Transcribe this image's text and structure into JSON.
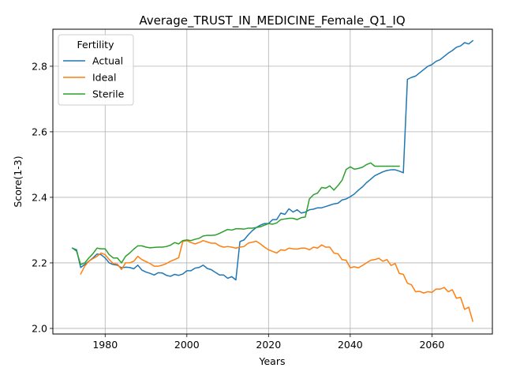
{
  "chart_data": {
    "type": "line",
    "title": "Average_TRUST_IN_MEDICINE_Female_Q1_IQ",
    "xlabel": "Years",
    "ylabel": "Score(1-3)",
    "xlim": [
      1967.2,
      2074.8
    ],
    "ylim": [
      1.983,
      2.913
    ],
    "x_ticks": [
      1980,
      2000,
      2020,
      2040,
      2060
    ],
    "y_ticks": [
      2.0,
      2.2,
      2.4,
      2.6,
      2.8
    ],
    "x_tick_labels": [
      "1980",
      "2000",
      "2020",
      "2040",
      "2060"
    ],
    "y_tick_labels": [
      "2.0",
      "2.2",
      "2.4",
      "2.6",
      "2.8"
    ],
    "grid": true,
    "legend": {
      "title": "Fertility",
      "placement": "top-left"
    },
    "series": [
      {
        "name": "Actual",
        "color": "#1f77b4",
        "points": [
          [
            1972,
            2.245
          ],
          [
            1973,
            2.24
          ],
          [
            1974,
            2.186
          ],
          [
            1975,
            2.195
          ],
          [
            1976,
            2.205
          ],
          [
            1977,
            2.215
          ],
          [
            1978,
            2.227
          ],
          [
            1979,
            2.225
          ],
          [
            1980,
            2.215
          ],
          [
            1981,
            2.2
          ],
          [
            1982,
            2.195
          ],
          [
            1983,
            2.193
          ],
          [
            1984,
            2.185
          ],
          [
            1985,
            2.187
          ],
          [
            1986,
            2.186
          ],
          [
            1987,
            2.182
          ],
          [
            1988,
            2.193
          ],
          [
            1989,
            2.178
          ],
          [
            1990,
            2.172
          ],
          [
            1991,
            2.168
          ],
          [
            1992,
            2.163
          ],
          [
            1993,
            2.17
          ],
          [
            1994,
            2.169
          ],
          [
            1995,
            2.162
          ],
          [
            1996,
            2.159
          ],
          [
            1997,
            2.165
          ],
          [
            1998,
            2.162
          ],
          [
            1999,
            2.166
          ],
          [
            2000,
            2.176
          ],
          [
            2001,
            2.176
          ],
          [
            2002,
            2.184
          ],
          [
            2003,
            2.186
          ],
          [
            2004,
            2.193
          ],
          [
            2005,
            2.183
          ],
          [
            2006,
            2.179
          ],
          [
            2007,
            2.171
          ],
          [
            2008,
            2.163
          ],
          [
            2009,
            2.163
          ],
          [
            2010,
            2.153
          ],
          [
            2011,
            2.158
          ],
          [
            2012,
            2.148
          ],
          [
            2013,
            2.265
          ],
          [
            2014,
            2.27
          ],
          [
            2015,
            2.285
          ],
          [
            2016,
            2.298
          ],
          [
            2017,
            2.308
          ],
          [
            2018,
            2.315
          ],
          [
            2019,
            2.32
          ],
          [
            2020,
            2.32
          ],
          [
            2021,
            2.332
          ],
          [
            2022,
            2.332
          ],
          [
            2023,
            2.352
          ],
          [
            2024,
            2.348
          ],
          [
            2025,
            2.365
          ],
          [
            2026,
            2.355
          ],
          [
            2027,
            2.362
          ],
          [
            2028,
            2.352
          ],
          [
            2029,
            2.355
          ],
          [
            2030,
            2.362
          ],
          [
            2031,
            2.364
          ],
          [
            2032,
            2.368
          ],
          [
            2033,
            2.368
          ],
          [
            2034,
            2.372
          ],
          [
            2035,
            2.376
          ],
          [
            2036,
            2.38
          ],
          [
            2037,
            2.382
          ],
          [
            2038,
            2.392
          ],
          [
            2039,
            2.395
          ],
          [
            2040,
            2.402
          ],
          [
            2041,
            2.41
          ],
          [
            2042,
            2.422
          ],
          [
            2043,
            2.432
          ],
          [
            2044,
            2.445
          ],
          [
            2045,
            2.455
          ],
          [
            2046,
            2.466
          ],
          [
            2047,
            2.472
          ],
          [
            2048,
            2.478
          ],
          [
            2049,
            2.482
          ],
          [
            2050,
            2.484
          ],
          [
            2051,
            2.484
          ],
          [
            2052,
            2.48
          ],
          [
            2053,
            2.475
          ],
          [
            2054,
            2.76
          ],
          [
            2055,
            2.766
          ],
          [
            2056,
            2.77
          ],
          [
            2057,
            2.78
          ],
          [
            2058,
            2.79
          ],
          [
            2059,
            2.8
          ],
          [
            2060,
            2.805
          ],
          [
            2061,
            2.815
          ],
          [
            2062,
            2.82
          ],
          [
            2063,
            2.83
          ],
          [
            2064,
            2.84
          ],
          [
            2065,
            2.848
          ],
          [
            2066,
            2.858
          ],
          [
            2067,
            2.862
          ],
          [
            2068,
            2.872
          ],
          [
            2069,
            2.868
          ],
          [
            2070,
            2.878
          ]
        ]
      },
      {
        "name": "Ideal",
        "color": "#ff7f0e",
        "points": [
          [
            1974,
            2.166
          ],
          [
            1975,
            2.19
          ],
          [
            1976,
            2.205
          ],
          [
            1977,
            2.213
          ],
          [
            1978,
            2.22
          ],
          [
            1979,
            2.23
          ],
          [
            1980,
            2.225
          ],
          [
            1981,
            2.21
          ],
          [
            1982,
            2.198
          ],
          [
            1983,
            2.196
          ],
          [
            1984,
            2.18
          ],
          [
            1985,
            2.2
          ],
          [
            1986,
            2.2
          ],
          [
            1987,
            2.205
          ],
          [
            1988,
            2.22
          ],
          [
            1989,
            2.21
          ],
          [
            1990,
            2.204
          ],
          [
            1991,
            2.198
          ],
          [
            1992,
            2.19
          ],
          [
            1993,
            2.19
          ],
          [
            1994,
            2.193
          ],
          [
            1995,
            2.198
          ],
          [
            1996,
            2.205
          ],
          [
            1997,
            2.21
          ],
          [
            1998,
            2.216
          ],
          [
            1999,
            2.265
          ],
          [
            2000,
            2.268
          ],
          [
            2001,
            2.262
          ],
          [
            2002,
            2.258
          ],
          [
            2003,
            2.262
          ],
          [
            2004,
            2.268
          ],
          [
            2005,
            2.264
          ],
          [
            2006,
            2.26
          ],
          [
            2007,
            2.26
          ],
          [
            2008,
            2.252
          ],
          [
            2009,
            2.248
          ],
          [
            2010,
            2.25
          ],
          [
            2011,
            2.248
          ],
          [
            2012,
            2.245
          ],
          [
            2013,
            2.248
          ],
          [
            2014,
            2.25
          ],
          [
            2015,
            2.26
          ],
          [
            2016,
            2.263
          ],
          [
            2017,
            2.266
          ],
          [
            2018,
            2.258
          ],
          [
            2019,
            2.248
          ],
          [
            2020,
            2.24
          ],
          [
            2021,
            2.235
          ],
          [
            2022,
            2.23
          ],
          [
            2023,
            2.24
          ],
          [
            2024,
            2.238
          ],
          [
            2025,
            2.245
          ],
          [
            2026,
            2.243
          ],
          [
            2027,
            2.242
          ],
          [
            2028,
            2.245
          ],
          [
            2029,
            2.245
          ],
          [
            2030,
            2.24
          ],
          [
            2031,
            2.248
          ],
          [
            2032,
            2.245
          ],
          [
            2033,
            2.255
          ],
          [
            2034,
            2.248
          ],
          [
            2035,
            2.248
          ],
          [
            2036,
            2.23
          ],
          [
            2037,
            2.228
          ],
          [
            2038,
            2.21
          ],
          [
            2039,
            2.208
          ],
          [
            2040,
            2.185
          ],
          [
            2041,
            2.188
          ],
          [
            2042,
            2.185
          ],
          [
            2043,
            2.192
          ],
          [
            2044,
            2.2
          ],
          [
            2045,
            2.208
          ],
          [
            2046,
            2.21
          ],
          [
            2047,
            2.214
          ],
          [
            2048,
            2.205
          ],
          [
            2049,
            2.21
          ],
          [
            2050,
            2.192
          ],
          [
            2051,
            2.198
          ],
          [
            2052,
            2.168
          ],
          [
            2053,
            2.165
          ],
          [
            2054,
            2.138
          ],
          [
            2055,
            2.133
          ],
          [
            2056,
            2.112
          ],
          [
            2057,
            2.113
          ],
          [
            2058,
            2.108
          ],
          [
            2059,
            2.112
          ],
          [
            2060,
            2.11
          ],
          [
            2061,
            2.12
          ],
          [
            2062,
            2.12
          ],
          [
            2063,
            2.125
          ],
          [
            2064,
            2.112
          ],
          [
            2065,
            2.118
          ],
          [
            2066,
            2.092
          ],
          [
            2067,
            2.095
          ],
          [
            2068,
            2.058
          ],
          [
            2069,
            2.065
          ],
          [
            2070,
            2.022
          ]
        ]
      },
      {
        "name": "Sterile",
        "color": "#2ca02c",
        "points": [
          [
            1972,
            2.245
          ],
          [
            1973,
            2.236
          ],
          [
            1974,
            2.195
          ],
          [
            1975,
            2.2
          ],
          [
            1976,
            2.215
          ],
          [
            1977,
            2.228
          ],
          [
            1978,
            2.245
          ],
          [
            1979,
            2.243
          ],
          [
            1980,
            2.243
          ],
          [
            1981,
            2.225
          ],
          [
            1982,
            2.215
          ],
          [
            1983,
            2.215
          ],
          [
            1984,
            2.2
          ],
          [
            1985,
            2.22
          ],
          [
            1986,
            2.23
          ],
          [
            1987,
            2.242
          ],
          [
            1988,
            2.252
          ],
          [
            1989,
            2.252
          ],
          [
            1990,
            2.248
          ],
          [
            1991,
            2.246
          ],
          [
            1992,
            2.247
          ],
          [
            1993,
            2.248
          ],
          [
            1994,
            2.248
          ],
          [
            1995,
            2.25
          ],
          [
            1996,
            2.254
          ],
          [
            1997,
            2.262
          ],
          [
            1998,
            2.258
          ],
          [
            1999,
            2.268
          ],
          [
            2000,
            2.27
          ],
          [
            2001,
            2.268
          ],
          [
            2002,
            2.272
          ],
          [
            2003,
            2.275
          ],
          [
            2004,
            2.282
          ],
          [
            2005,
            2.284
          ],
          [
            2006,
            2.284
          ],
          [
            2007,
            2.285
          ],
          [
            2008,
            2.29
          ],
          [
            2009,
            2.296
          ],
          [
            2010,
            2.302
          ],
          [
            2011,
            2.3
          ],
          [
            2012,
            2.304
          ],
          [
            2013,
            2.304
          ],
          [
            2014,
            2.303
          ],
          [
            2015,
            2.306
          ],
          [
            2016,
            2.306
          ],
          [
            2017,
            2.308
          ],
          [
            2018,
            2.31
          ],
          [
            2019,
            2.315
          ],
          [
            2020,
            2.32
          ],
          [
            2021,
            2.318
          ],
          [
            2022,
            2.322
          ],
          [
            2023,
            2.332
          ],
          [
            2024,
            2.334
          ],
          [
            2025,
            2.336
          ],
          [
            2026,
            2.336
          ],
          [
            2027,
            2.332
          ],
          [
            2028,
            2.338
          ],
          [
            2029,
            2.34
          ],
          [
            2030,
            2.395
          ],
          [
            2031,
            2.408
          ],
          [
            2032,
            2.413
          ],
          [
            2033,
            2.43
          ],
          [
            2034,
            2.428
          ],
          [
            2035,
            2.435
          ],
          [
            2036,
            2.422
          ],
          [
            2037,
            2.436
          ],
          [
            2038,
            2.452
          ],
          [
            2039,
            2.485
          ],
          [
            2040,
            2.493
          ],
          [
            2041,
            2.486
          ],
          [
            2042,
            2.488
          ],
          [
            2043,
            2.492
          ],
          [
            2044,
            2.5
          ],
          [
            2045,
            2.505
          ],
          [
            2046,
            2.495
          ],
          [
            2047,
            2.495
          ],
          [
            2048,
            2.495
          ],
          [
            2049,
            2.495
          ],
          [
            2050,
            2.495
          ],
          [
            2051,
            2.495
          ],
          [
            2052,
            2.495
          ]
        ]
      }
    ]
  }
}
